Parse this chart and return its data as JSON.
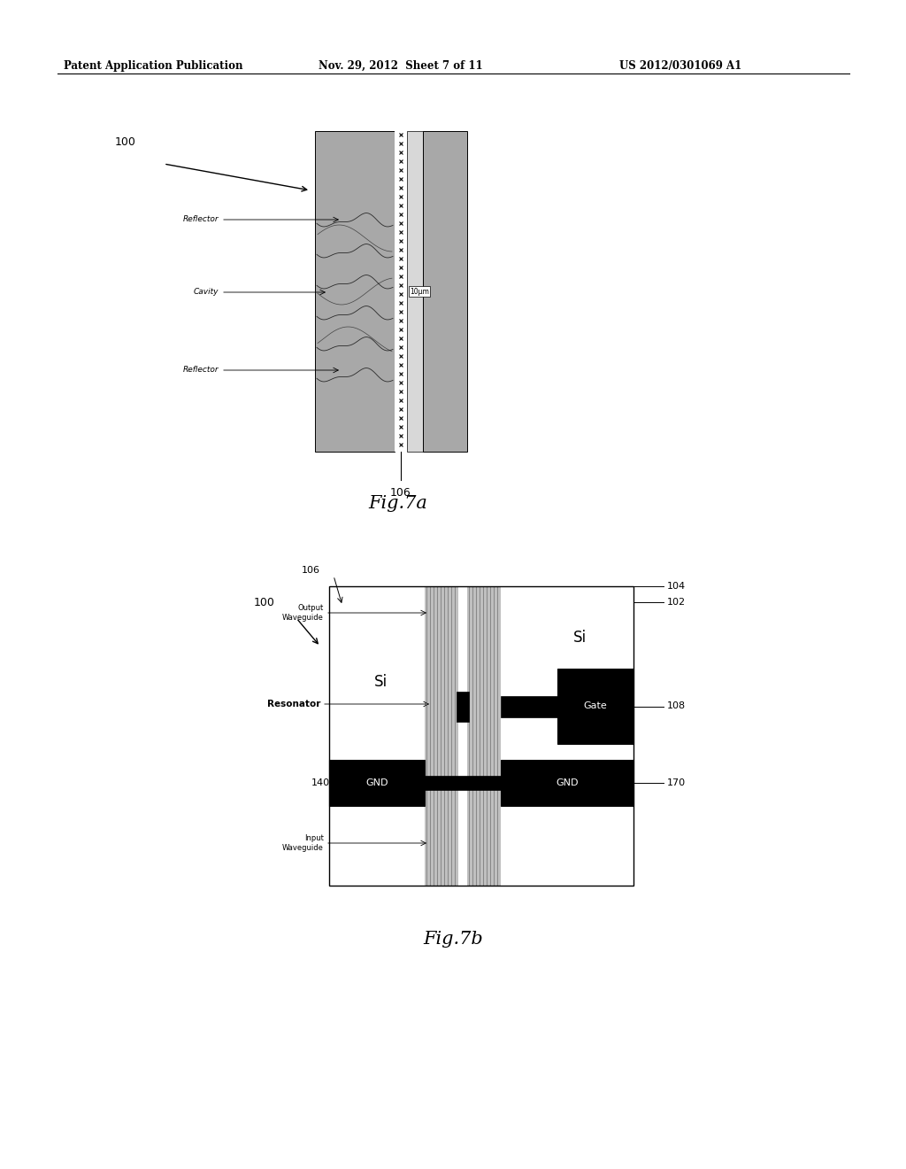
{
  "bg_color": "#ffffff",
  "header_text": "Patent Application Publication",
  "header_date": "Nov. 29, 2012  Sheet 7 of 11",
  "header_patent": "US 2012/0301069 A1",
  "fig7a_label": "Fig.7a",
  "fig7b_label": "Fig.7b",
  "fig7a_ref100": "100",
  "fig7a_ref106": "106",
  "fig7b_ref100": "100",
  "fig7b_ref106": "106",
  "fig7b_ref102": "102",
  "fig7b_ref104": "104",
  "fig7b_ref108": "108",
  "fig7b_ref140": "140",
  "fig7b_ref170": "170",
  "gray_dark": "#a8a8a8",
  "gray_mid": "#c0c0c0",
  "gray_light": "#d8d8d8",
  "gray_very_light": "#ebebeb"
}
